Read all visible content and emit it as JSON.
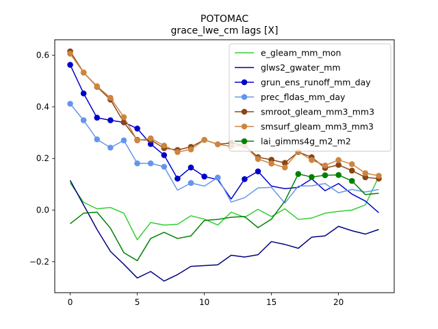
{
  "chart_data": {
    "type": "line",
    "title": "POTOMAC",
    "subtitle": "grace_lwe_cm lags [X]",
    "xlabel": "",
    "ylabel": "",
    "xlim": [
      -1.15,
      24.15
    ],
    "ylim": [
      -0.32,
      0.66
    ],
    "xticks": [
      0,
      5,
      10,
      15,
      20
    ],
    "yticks": [
      -0.2,
      0.0,
      0.2,
      0.4,
      0.6
    ],
    "ytick_labels": [
      "−0.2",
      "0.0",
      "0.2",
      "0.4",
      "0.6"
    ],
    "grid": false,
    "legend_position": "top-right",
    "x": [
      0,
      1,
      2,
      3,
      4,
      5,
      6,
      7,
      8,
      9,
      10,
      11,
      12,
      13,
      14,
      15,
      16,
      17,
      18,
      19,
      20,
      21,
      22,
      23
    ],
    "series": [
      {
        "name": "e_gleam_mm_mon",
        "color": "#32cd32",
        "values": [
          0.105,
          0.03,
          0.005,
          0.01,
          -0.012,
          -0.115,
          -0.048,
          -0.058,
          -0.055,
          -0.022,
          -0.035,
          -0.058,
          -0.008,
          -0.028,
          0.003,
          -0.025,
          0.005,
          -0.036,
          -0.031,
          -0.012,
          -0.005,
          0.0,
          0.02,
          0.13
        ],
        "markers": []
      },
      {
        "name": "glws2_gwater_mm",
        "color": "#000080",
        "values": [
          0.115,
          0.02,
          -0.075,
          -0.16,
          -0.21,
          -0.263,
          -0.238,
          -0.275,
          -0.25,
          -0.218,
          -0.215,
          -0.212,
          -0.175,
          -0.182,
          -0.173,
          -0.122,
          -0.133,
          -0.148,
          -0.105,
          -0.1,
          -0.063,
          -0.08,
          -0.093,
          -0.075
        ],
        "markers": []
      },
      {
        "name": "grun_ens_runoff_mm_day",
        "color": "#0000cd",
        "values": [
          0.563,
          0.452,
          0.358,
          0.348,
          0.34,
          0.316,
          0.256,
          0.213,
          0.122,
          0.165,
          0.13,
          0.118,
          0.043,
          0.12,
          0.15,
          0.093,
          0.083,
          0.088,
          0.121,
          0.075,
          0.103,
          0.062,
          0.035,
          -0.01
        ],
        "markers": [
          0,
          1,
          2,
          3,
          4,
          5,
          6,
          7,
          8,
          9,
          10,
          13,
          14
        ]
      },
      {
        "name": "prec_fldas_mm_day",
        "color": "#6495ed",
        "values": [
          0.412,
          0.348,
          0.274,
          0.242,
          0.27,
          0.181,
          0.181,
          0.168,
          0.077,
          0.105,
          0.093,
          0.126,
          0.031,
          0.048,
          0.086,
          0.088,
          0.027,
          0.093,
          0.094,
          0.103,
          0.067,
          0.08,
          0.07,
          0.08
        ],
        "markers": [
          0,
          1,
          2,
          3,
          4,
          5,
          6,
          7,
          9,
          11
        ]
      },
      {
        "name": "smroot_gleam_mm3_mm3",
        "color": "#8b4513",
        "values": [
          0.615,
          0.533,
          0.478,
          0.428,
          0.34,
          0.272,
          0.272,
          0.24,
          0.233,
          0.245,
          0.272,
          0.255,
          0.26,
          0.25,
          0.205,
          0.195,
          0.183,
          0.225,
          0.205,
          0.163,
          0.175,
          0.153,
          0.127,
          0.122
        ],
        "markers": [
          0,
          1,
          2,
          3,
          4,
          5,
          6,
          7,
          8,
          9,
          10,
          11,
          12,
          13,
          14,
          15,
          16,
          17,
          18,
          19,
          20,
          21,
          22,
          23
        ]
      },
      {
        "name": "smsurf_gleam_mm3_mm3",
        "color": "#cd853f",
        "values": [
          0.606,
          0.533,
          0.48,
          0.435,
          0.36,
          0.27,
          0.278,
          0.25,
          0.225,
          0.235,
          0.272,
          0.255,
          0.247,
          0.25,
          0.198,
          0.18,
          0.165,
          0.226,
          0.194,
          0.173,
          0.194,
          0.178,
          0.143,
          0.133
        ],
        "markers": [
          0,
          1,
          2,
          3,
          4,
          5,
          6,
          7,
          8,
          9,
          10,
          11,
          12,
          13,
          14,
          15,
          16,
          17,
          18,
          19,
          20,
          21,
          22,
          23
        ]
      },
      {
        "name": "lai_gimms4g_m2_m2",
        "color": "#008000",
        "values": [
          -0.053,
          -0.012,
          -0.008,
          -0.07,
          -0.165,
          -0.196,
          -0.11,
          -0.086,
          -0.11,
          -0.1,
          -0.04,
          -0.036,
          -0.028,
          -0.025,
          -0.068,
          -0.035,
          0.035,
          0.14,
          0.128,
          0.135,
          0.136,
          0.113,
          0.06,
          0.065
        ],
        "markers": [
          17,
          18,
          19,
          20,
          21
        ]
      }
    ]
  }
}
